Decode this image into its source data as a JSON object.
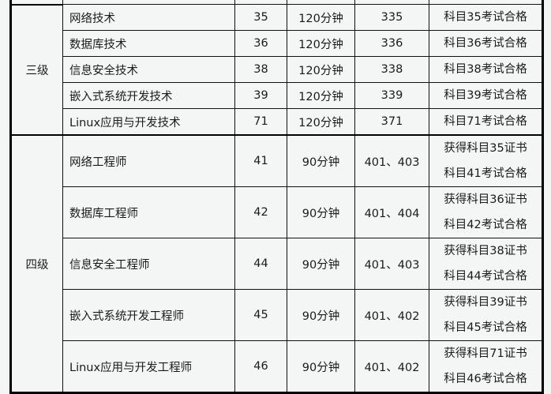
{
  "groups": [
    {
      "level": "三级",
      "rows": [
        {
          "name": "网络技术",
          "code": "35",
          "duration": "120分钟",
          "exam": "335",
          "cond": [
            "科目35考试合格"
          ]
        },
        {
          "name": "数据库技术",
          "code": "36",
          "duration": "120分钟",
          "exam": "336",
          "cond": [
            "科目36考试合格"
          ]
        },
        {
          "name": "信息安全技术",
          "code": "38",
          "duration": "120分钟",
          "exam": "338",
          "cond": [
            "科目38考试合格"
          ]
        },
        {
          "name": "嵌入式系统开发技术",
          "code": "39",
          "duration": "120分钟",
          "exam": "339",
          "cond": [
            "科目39考试合格"
          ]
        },
        {
          "name": "Linux应用与开发技术",
          "code": "71",
          "duration": "120分钟",
          "exam": "371",
          "cond": [
            "科目71考试合格"
          ]
        }
      ]
    },
    {
      "level": "四级",
      "rows": [
        {
          "name": "网络工程师",
          "code": "41",
          "duration": "90分钟",
          "exam": "401、403",
          "cond": [
            "获得科目35证书",
            "科目41考试合格"
          ]
        },
        {
          "name": "数据库工程师",
          "code": "42",
          "duration": "90分钟",
          "exam": "401、404",
          "cond": [
            "获得科目36证书",
            "科目42考试合格"
          ]
        },
        {
          "name": "信息安全工程师",
          "code": "44",
          "duration": "90分钟",
          "exam": "401、403",
          "cond": [
            "获得科目38证书",
            "科目44考试合格"
          ]
        },
        {
          "name": "嵌入式系统开发工程师",
          "code": "45",
          "duration": "90分钟",
          "exam": "401、402",
          "cond": [
            "获得科目39证书",
            "科目45考试合格"
          ]
        },
        {
          "name": "Linux应用与开发工程师",
          "code": "46",
          "duration": "90分钟",
          "exam": "401、402",
          "cond": [
            "获得科目71证书",
            "科目46考试合格"
          ]
        }
      ]
    }
  ]
}
